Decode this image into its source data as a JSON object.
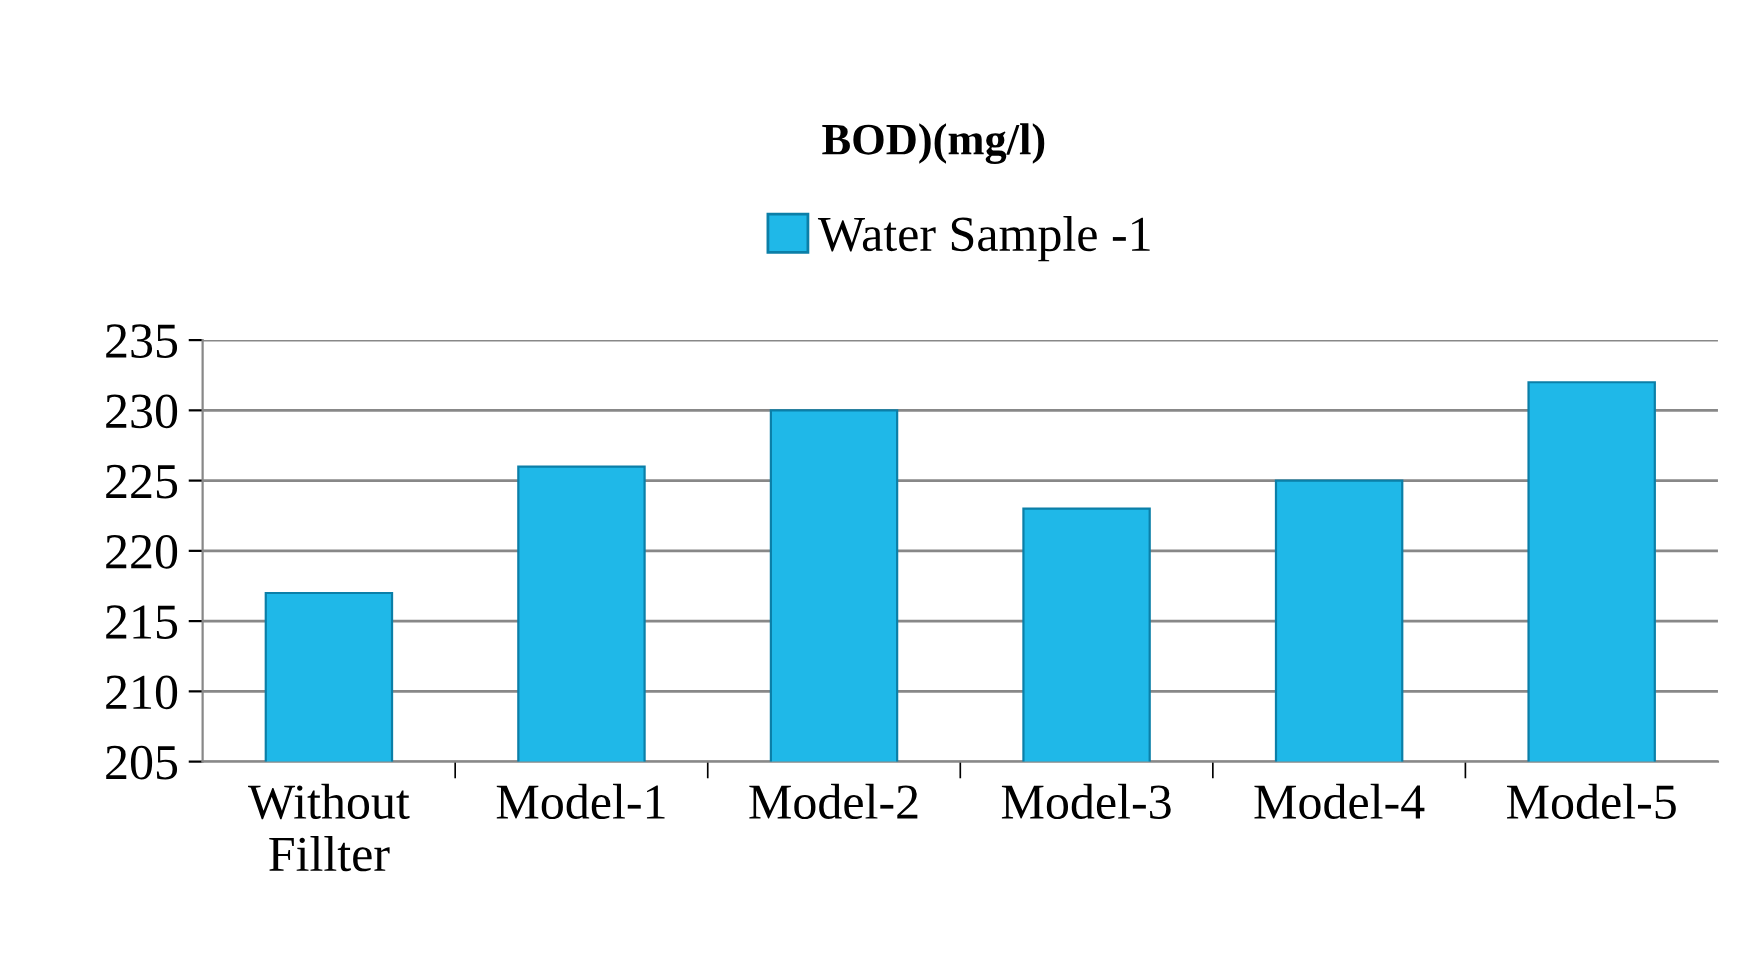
{
  "chart_data": {
    "type": "bar",
    "title": "BOD)(mg/l)",
    "categories": [
      "Without Fillter",
      "Model-1",
      "Model-2",
      "Model-3",
      "Model-4",
      "Model-5"
    ],
    "series": [
      {
        "name": "Water Sample -1",
        "color": "#1fb8e8",
        "values": [
          217,
          226,
          230,
          223,
          225,
          232
        ]
      }
    ],
    "ylim": [
      205,
      235
    ],
    "yticks": [
      205,
      210,
      215,
      220,
      225,
      230,
      235
    ],
    "grid": "y",
    "legend": "top"
  }
}
